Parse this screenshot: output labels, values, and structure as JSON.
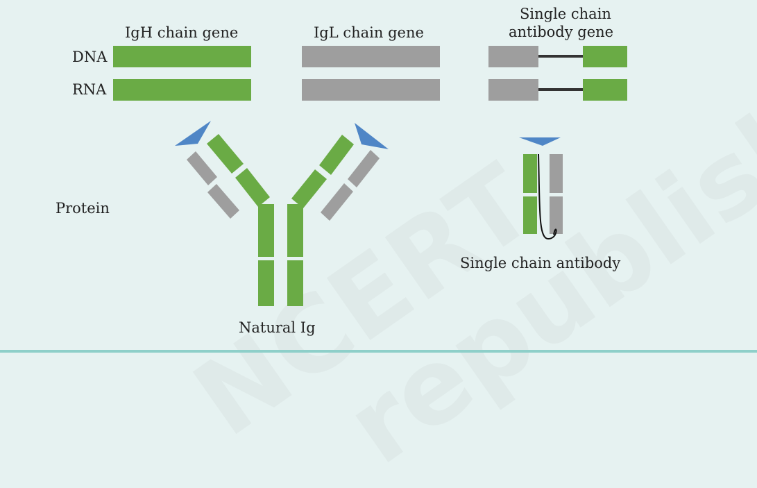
{
  "labels": {
    "igh_gene": "IgH chain gene",
    "igl_gene": "IgL chain gene",
    "single_gene_line1": "Single chain",
    "single_gene_line2": "antibody gene",
    "dna": "DNA",
    "rna": "RNA",
    "protein": "Protein",
    "natural_ig": "Natural Ig",
    "single_chain_antibody": "Single chain antibody"
  },
  "watermark": {
    "line1": "NCERT",
    "line2": "republished"
  },
  "colors": {
    "heavy_chain": "#6aab45",
    "light_chain": "#9e9e9e",
    "antigen": "#4f86c6",
    "linker": "#333333",
    "background": "#e6f2f1",
    "rule": "#8ecfc9"
  }
}
